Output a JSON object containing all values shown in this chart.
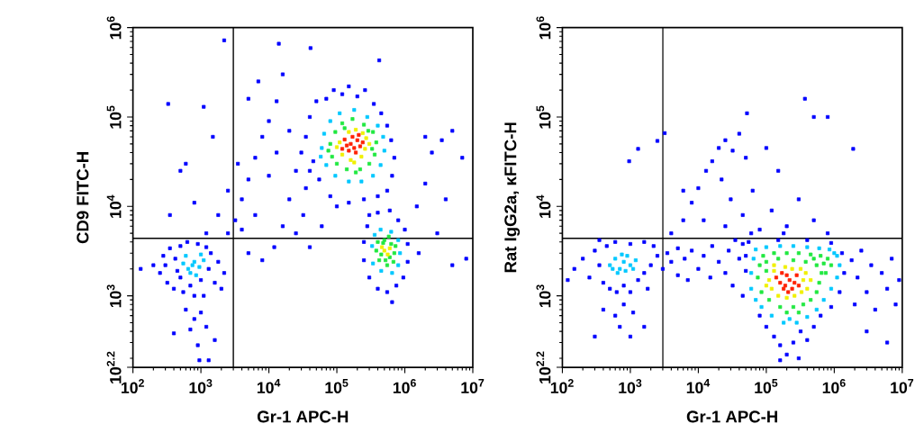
{
  "chart_data": [
    {
      "type": "scatter",
      "xlabel": "Gr-1 APC-H",
      "ylabel": "CD9 FITC-H",
      "log": "xy",
      "marker": "square",
      "xlim": [
        100,
        10000000
      ],
      "ylim": [
        158.5,
        1000000
      ],
      "xticks": [
        {
          "value": 100,
          "label": "10$^{2}$"
        },
        {
          "value": 1000,
          "label": "10$^{3}$"
        },
        {
          "value": 10000,
          "label": "10$^{4}$"
        },
        {
          "value": 100000,
          "label": "10$^{5}$"
        },
        {
          "value": 1000000,
          "label": "10$^{6}$"
        },
        {
          "value": 10000000,
          "label": "10$^{7}$"
        }
      ],
      "yticks": [
        {
          "value": 158.5,
          "label": "10$^{2.2}$"
        },
        {
          "value": 1000,
          "label": "10$^{3}$"
        },
        {
          "value": 10000,
          "label": "10$^{4}$"
        },
        {
          "value": 100000,
          "label": "10$^{5}$"
        },
        {
          "value": 1000000,
          "label": "10$^{6}$"
        }
      ],
      "ref_lines": [
        {
          "axis": "x",
          "value": 3000,
          "color": "#000000"
        },
        {
          "axis": "y",
          "value": 4400,
          "color": "#000000"
        }
      ],
      "series": [
        {
          "color": "#0000ff",
          "x": [
            200.0,
            250.0,
            280.0,
            320.0,
            350.0,
            400.0,
            420.0,
            500.0,
            500.0,
            550.0,
            630.0,
            700.0,
            800.0,
            900.0,
            1000.0,
            1100.0,
            1300.0,
            1400.0,
            1600.0,
            1800.0,
            130.0,
            300.0,
            1200.0,
            2200.0,
            450.0,
            600.0,
            800.0,
            1000.0,
            700.0,
            1200.0,
            900.0,
            400.0,
            1600.0,
            950.0,
            1300.0,
            35000.0,
            40000.0,
            45000.0,
            50000.0,
            55000.0,
            70000.0,
            80000.0,
            90000.0,
            120000.0,
            150000.0,
            200000.0,
            260000.0,
            350000.0,
            450000.0,
            550000.0,
            630000.0,
            700000.0,
            650000.0,
            550000.0,
            400000.0,
            250000.0,
            150000.0,
            100000.0,
            30000.0,
            40000.0,
            250000.0,
            280000.0,
            300000.0,
            400000.0,
            600000.0,
            800000.0,
            1000000.0,
            1100000.0,
            1100000.0,
            950000.0,
            750000.0,
            550000.0,
            400000.0,
            300000.0,
            250000.0,
            650000.0,
            2500.0,
            3200.0,
            4000.0,
            5000.0,
            6300.0,
            8000.0,
            10000.0,
            13000.0,
            7000.0,
            16000.0,
            20000.0,
            25000.0,
            32000.0,
            16000.0,
            12000.0,
            8000.0,
            5000.0,
            4000.0,
            6300.0,
            10000.0,
            25000.0,
            35000.0,
            13000.0,
            20000.0,
            5000.0,
            3500.0,
            2500.0,
            1800.0,
            1200.0,
            800.0,
            500.0,
            1500.0,
            40000.0,
            60000.0,
            2000.0,
            330.0,
            600.0,
            350.0,
            1100.0,
            1500000.0,
            2000000.0,
            2500000.0,
            3500000.0,
            5000000.0,
            7000000.0,
            2000000.0,
            3000000.0,
            5000000.0,
            8000000.0,
            1600000.0,
            4000000.0,
            2200.0,
            14000.0,
            41000.0,
            420000.0
          ],
          "values": [
            2200.0,
            1800.0,
            2800.0,
            1400.0,
            3400.0,
            1200.0,
            2600.0,
            3600.0,
            1600.0,
            1100.0,
            4000.0,
            1300.0,
            1000.0,
            3800.0,
            1500.0,
            1000.0,
            2000.0,
            3000.0,
            1400.0,
            2400.0,
            2000.0,
            2200.0,
            3500.0,
            1800.0,
            1900.0,
            700.0,
            550.0,
            650.0,
            420.0,
            450.0,
            280.0,
            380.0,
            320.0,
            190.0,
            190.0,
            60000.0,
            100000.0,
            32000.0,
            150000.0,
            20000.0,
            160000.0,
            13000.0,
            200000.0,
            180000.0,
            220000.0,
            170000.0,
            200000.0,
            140000.0,
            110000.0,
            80000.0,
            55000.0,
            35000.0,
            22000.0,
            15000.0,
            13000.0,
            12000.0,
            11000.0,
            10000.0,
            40000.0,
            25000.0,
            4000.0,
            6000.0,
            8000.0,
            8500.0,
            9000.0,
            7000.0,
            5500.0,
            3800.0,
            2400.0,
            1600.0,
            1300.0,
            1100.0,
            1200.0,
            1600.0,
            2500.0,
            850.0,
            5000.0,
            7000.0,
            12000.0,
            20000.0,
            35000.0,
            60000.0,
            90000.0,
            150000.0,
            250000.0,
            300000.0,
            12000.0,
            5000.0,
            8000.0,
            6000.0,
            3500.0,
            2500.0,
            3000.0,
            5500.0,
            8000.0,
            22000.0,
            25000.0,
            16000.0,
            40000.0,
            70000.0,
            160000.0,
            30000.0,
            15000.0,
            8000.0,
            5000.0,
            11000.0,
            25000.0,
            60000.0,
            3500.0,
            6000.0,
            1200.0,
            140000.0,
            30000.0,
            8000.0,
            130000.0,
            10000.0,
            60000.0,
            40000.0,
            55000.0,
            70000.0,
            35000.0,
            18000.0,
            5000.0,
            2200.0,
            2600.0,
            3000.0,
            12000.0,
            720000.0,
            660000.0,
            590000.0,
            430000.0
          ]
        },
        {
          "color": "#00c8ff",
          "x": [
            60000.0,
            65000.0,
            80000.0,
            110000.0,
            180000.0,
            280000.0,
            400000.0,
            480000.0,
            500000.0,
            440000.0,
            340000.0,
            230000.0,
            150000.0,
            95000.0,
            70000.0,
            58000.0,
            360000.0,
            440000.0,
            630000.0,
            800000.0,
            850000.0,
            800000.0,
            650000.0,
            450000.0,
            340000.0,
            330000.0,
            550.0,
            650.0,
            800.0,
            700.0,
            950.0,
            1100.0,
            600.0,
            850.0,
            750.0,
            1000.0
          ],
          "values": [
            45000.0,
            65000.0,
            90000.0,
            110000.0,
            120000.0,
            100000.0,
            80000.0,
            60000.0,
            42000.0,
            29000.0,
            22000.0,
            19000.0,
            19000.0,
            22000.0,
            29000.0,
            36000.0,
            4800.0,
            5500.0,
            5200.0,
            4200.0,
            3000.0,
            2200.0,
            1800.0,
            1900.0,
            2300.0,
            3600.0,
            2300.0,
            2000.0,
            2400.0,
            1800.0,
            2100.0,
            2500.0,
            2800.0,
            1700.0,
            2200.0,
            2900.0
          ]
        },
        {
          "color": "#20e840",
          "x": [
            80000.0,
            85000.0,
            95000.0,
            120000.0,
            170000.0,
            250000.0,
            340000.0,
            380000.0,
            360000.0,
            300000.0,
            220000.0,
            140000.0,
            100000.0,
            75000.0,
            130000.0,
            290000.0,
            330000.0,
            190000.0,
            400000.0,
            500000.0,
            630000.0,
            700000.0,
            680000.0,
            550000.0,
            420000.0,
            380000.0,
            450000.0,
            600000.0,
            520000.0,
            480000.0,
            580000.0,
            730000.0
          ],
          "values": [
            50000.0,
            36000.0,
            68000.0,
            85000.0,
            95000.0,
            82000.0,
            68000.0,
            52000.0,
            38000.0,
            30000.0,
            26000.0,
            26000.0,
            30000.0,
            42000.0,
            75000.0,
            70000.0,
            44000.0,
            24000.0,
            4000.0,
            4200.0,
            3800.0,
            3000.0,
            2400.0,
            2200.0,
            2500.0,
            3200.0,
            2900.0,
            2700.0,
            2500.0,
            3900.0,
            4600.0,
            3600.0
          ]
        },
        {
          "color": "#f0f000",
          "x": [
            110000.0,
            260000.0,
            120000.0,
            270000.0,
            160000.0,
            230000.0,
            150000.0,
            240000.0,
            100000.0,
            300000.0,
            190000.0,
            180000.0,
            500000.0,
            560000.0,
            460000.0,
            600000.0
          ],
          "values": [
            52000.0,
            44000.0,
            38000.0,
            58000.0,
            33000.0,
            36000.0,
            68000.0,
            66000.0,
            46000.0,
            50000.0,
            72000.0,
            31000.0,
            3200.0,
            2900.0,
            3500.0,
            3400.0
          ]
        },
        {
          "color": "#ff2000",
          "x": [
            160000.0,
            180000.0,
            200000.0,
            140000.0,
            220000.0,
            170000.0,
            190000.0,
            150000.0,
            240000.0,
            130000.0,
            210000.0,
            120000.0
          ],
          "values": [
            50000.0,
            45000.0,
            55000.0,
            48000.0,
            47000.0,
            60000.0,
            40000.0,
            42000.0,
            52000.0,
            56000.0,
            63000.0,
            44000.0
          ]
        }
      ]
    },
    {
      "type": "scatter",
      "xlabel": "Gr-1 APC-H",
      "ylabel": "Rat IgG2a, κFITC-H",
      "log": "xy",
      "marker": "square",
      "xlim": [
        100,
        10000000
      ],
      "ylim": [
        158.5,
        1000000
      ],
      "xticks": [
        {
          "value": 100,
          "label": "10$^{2}$"
        },
        {
          "value": 1000,
          "label": "10$^{3}$"
        },
        {
          "value": 10000,
          "label": "10$^{4}$"
        },
        {
          "value": 100000,
          "label": "10$^{5}$"
        },
        {
          "value": 1000000,
          "label": "10$^{6}$"
        },
        {
          "value": 10000000,
          "label": "10$^{7}$"
        }
      ],
      "yticks": [
        {
          "value": 158.5,
          "label": "10$^{2.2}$"
        },
        {
          "value": 1000,
          "label": "10$^{3}$"
        },
        {
          "value": 10000,
          "label": "10$^{4}$"
        },
        {
          "value": 100000,
          "label": "10$^{5}$"
        },
        {
          "value": 1000000,
          "label": "10$^{6}$"
        }
      ],
      "ref_lines": [
        {
          "axis": "x",
          "value": 3000,
          "color": "#000000"
        },
        {
          "axis": "y",
          "value": 4400,
          "color": "#000000"
        }
      ],
      "series": [
        {
          "color": "#0000ff",
          "x": [
            150.0,
            200.0,
            250.0,
            300.0,
            350.0,
            400.0,
            450.0,
            500.0,
            630.0,
            800.0,
            1000.0,
            1300.0,
            1600.0,
            2000.0,
            2500.0,
            2200.0,
            1600.0,
            1000.0,
            600.0,
            350.0,
            120.0,
            1800.0,
            400.0,
            600.0,
            800.0,
            1100.0,
            700.0,
            1000.0,
            300.0,
            1600.0,
            3000.0,
            3500.0,
            4000.0,
            5000.0,
            5000.0,
            6300.0,
            7000.0,
            8000.0,
            10000.0,
            12000.0,
            15000.0,
            16000.0,
            20000.0,
            25000.0,
            28000.0,
            32000.0,
            40000.0,
            45000.0,
            50000.0,
            35000.0,
            4000.0,
            6000.0,
            8000.0,
            10000.0,
            13000.0,
            16000.0,
            20000.0,
            25000.0,
            32000.0,
            40000.0,
            50000.0,
            22000.0,
            30000.0,
            45000.0,
            63000.0,
            80000.0,
            120000.0,
            200000.0,
            300000.0,
            500000.0,
            800000.0,
            150000.0,
            100000.0,
            6000.0,
            12000.0,
            25000.0,
            60000.0,
            180000.0,
            370000.0,
            500000.0,
            800000.0,
            52000.0,
            1900000.0,
            2500.0,
            1300.0,
            960.0,
            3200.0,
            80000.0,
            100000.0,
            130000.0,
            160000.0,
            200000.0,
            250000.0,
            320000.0,
            400000.0,
            500000.0,
            630000.0,
            160000.0,
            300000.0,
            45000.0,
            50000.0,
            55000.0,
            150000.0,
            400000.0,
            900000.0,
            1300000.0,
            1400000.0,
            1200000.0,
            900000.0,
            1800000.0,
            2200000.0,
            2500000.0,
            3000000.0,
            3500000.0,
            4000000.0,
            5000000.0,
            6000000.0,
            7000000.0,
            8000000.0,
            9000000.0,
            3000000.0,
            6000000.0,
            2000000.0
          ],
          "values": [
            2000.0,
            2600.0,
            1600.0,
            3200.0,
            2200.0,
            1400.0,
            3600.0,
            1200.0,
            1100.0,
            1300.0,
            1100.0,
            1500.0,
            1800.0,
            2200.0,
            2800.0,
            3600.0,
            4000.0,
            3800.0,
            4000.0,
            4200.0,
            1500.0,
            1200.0,
            700.0,
            600.0,
            800.0,
            650.0,
            450.0,
            350.0,
            350.0,
            450.0,
            2000.0,
            3000.0,
            2400.0,
            3400.0,
            1700.0,
            2600.0,
            1500.0,
            3200.0,
            2000.0,
            2800.0,
            1600.0,
            3600.0,
            2400.0,
            1800.0,
            3200.0,
            1300.0,
            2600.0,
            3800.0,
            1900.0,
            4200.0,
            5000.0,
            7000.0,
            11000.0,
            16000.0,
            25000.0,
            32000.0,
            45000.0,
            55000.0,
            42000.0,
            65000.0,
            35000.0,
            20000.0,
            12000.0,
            8000.0,
            15000.0,
            5500.0,
            9000.0,
            6000.0,
            12000.0,
            7000.0,
            5000.0,
            25000.0,
            45000.0,
            15000.0,
            7000.0,
            6000.0,
            5000.0,
            5000.0,
            160000.0,
            100000.0,
            100000.0,
            110000.0,
            44000.0,
            54000.0,
            44000.0,
            32000.0,
            66000.0,
            600.0,
            450.0,
            350.0,
            280.0,
            220.0,
            300.0,
            400.0,
            320.0,
            450.0,
            600.0,
            190.0,
            200.0,
            1000.0,
            2800.0,
            4000.0,
            4200.0,
            4200.0,
            3900.0,
            3000.0,
            1800.0,
            1100.0,
            750.0,
            2500.0,
            1600.0,
            3200.0,
            1100.0,
            2200.0,
            700.0,
            1800.0,
            1200.0,
            2600.0,
            800.0,
            1500.0,
            400.0,
            300.0,
            800.0
          ]
        },
        {
          "color": "#00c8ff",
          "x": [
            60000.0,
            60000.0,
            65000.0,
            70000.0,
            100000.0,
            160000.0,
            250000.0,
            400000.0,
            600000.0,
            850000.0,
            1100000.0,
            1200000.0,
            1100000.0,
            900000.0,
            700000.0,
            550000.0,
            400000.0,
            280000.0,
            180000.0,
            120000.0,
            85000.0,
            70000.0,
            1000000.0,
            220000.0,
            500.0,
            600.0,
            700.0,
            800.0,
            900.0,
            1000.0,
            1200.0,
            650.0,
            850.0,
            1100.0,
            750.0,
            550.0
          ],
          "values": [
            1200.0,
            1800.0,
            2600.0,
            3300.0,
            3500.0,
            3600.0,
            3600.0,
            3500.0,
            3400.0,
            3300.0,
            2800.0,
            2200.0,
            1600.0,
            1200.0,
            900.0,
            700.0,
            580.0,
            500.0,
            500.0,
            600.0,
            750.0,
            900.0,
            3000.0,
            550.0,
            2200.0,
            2600.0,
            2000.0,
            2400.0,
            2800.0,
            2200.0,
            2500.0,
            1800.0,
            1900.0,
            2000.0,
            2900.0,
            2000.0
          ]
        },
        {
          "color": "#20e840",
          "x": [
            75000.0,
            80000.0,
            90000.0,
            130000.0,
            200000.0,
            300000.0,
            450000.0,
            630000.0,
            800000.0,
            900000.0,
            750000.0,
            600000.0,
            550000.0,
            450000.0,
            350000.0,
            250000.0,
            160000.0,
            110000.0,
            85000.0,
            150000.0,
            250000.0,
            380000.0,
            550000.0,
            700000.0,
            100000.0,
            200000.0,
            300000.0,
            650000.0,
            500000.0,
            100000.0
          ],
          "values": [
            1600.0,
            2200.0,
            2800.0,
            3000.0,
            3000.0,
            3000.0,
            2900.0,
            2800.0,
            2600.0,
            2200.0,
            1800.0,
            1400.0,
            1100.0,
            900.0,
            800.0,
            750.0,
            750.0,
            900.0,
            1100.0,
            2600.0,
            2500.0,
            2400.0,
            2200.0,
            2300.0,
            2400.0,
            650.0,
            650.0,
            1800.0,
            2600.0,
            1900.0
          ]
        },
        {
          "color": "#f0f000",
          "x": [
            110000.0,
            120000.0,
            130000.0,
            350000.0,
            400000.0,
            380000.0,
            240000.0,
            190000.0,
            150000.0,
            260000.0,
            320000.0,
            100000.0,
            200000.0,
            330000.0,
            450000.0,
            130000.0
          ],
          "values": [
            1500.0,
            1200.0,
            1900.0,
            1500.0,
            1200.0,
            1800.0,
            2000.0,
            2100.0,
            1000.0,
            1000.0,
            2000.0,
            1300.0,
            950.0,
            1100.0,
            1500.0,
            2200.0
          ]
        },
        {
          "color": "#ff2000",
          "x": [
            160000.0,
            190000.0,
            220000.0,
            260000.0,
            200000.0,
            180000.0,
            240000.0,
            300000.0,
            140000.0,
            280000.0,
            210000.0,
            170000.0
          ],
          "values": [
            1400.0,
            1300.0,
            1500.0,
            1400.0,
            1700.0,
            1200.0,
            1200.0,
            1300.0,
            1600.0,
            1700.0,
            1100.0,
            1800.0
          ]
        }
      ]
    }
  ]
}
